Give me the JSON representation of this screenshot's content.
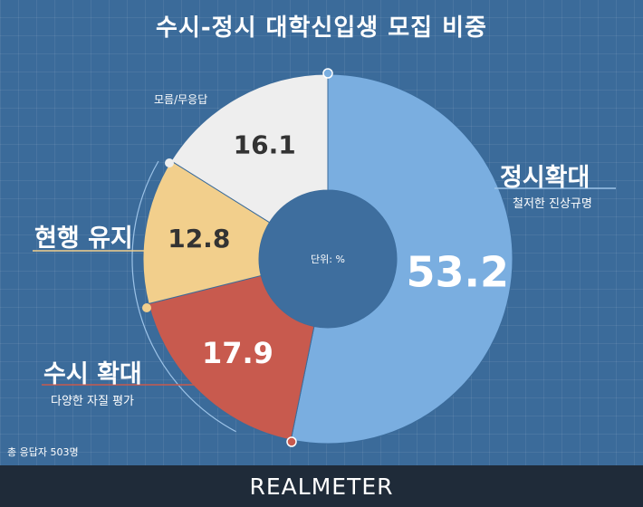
{
  "title": "수시-정시 대학신입생 모집 비중",
  "chart_data": {
    "type": "pie",
    "unit_label": "단위: %",
    "slices": [
      {
        "name": "정시확대",
        "value": 53.2,
        "color": "#7aaee0"
      },
      {
        "name": "수시 확대",
        "value": 17.9,
        "color": "#c85a4e"
      },
      {
        "name": "현행 유지",
        "value": 12.8,
        "color": "#f2cf8c"
      },
      {
        "name": "모름/무응답",
        "value": 16.1,
        "color": "#eeeeee"
      }
    ],
    "value_labels": [
      "53.2",
      "17.9",
      "12.8",
      "16.1"
    ]
  },
  "labels": {
    "jeongsi": {
      "title": "정시확대",
      "subtitle": "철저한 진상규명"
    },
    "susi": {
      "title": "수시 확대",
      "subtitle": "다양한 자질 평가"
    },
    "hyeonhaeng": {
      "title": "현행 유지"
    },
    "moreum": {
      "title": "모름/무응답"
    }
  },
  "total_respondents": "총 응답자 503명",
  "brand": "REALMETER",
  "colors": {
    "background": "#3b6b9a",
    "footer": "#1f2b39",
    "center": "#3e6e9e",
    "accent_line": "#f2cf8c"
  }
}
